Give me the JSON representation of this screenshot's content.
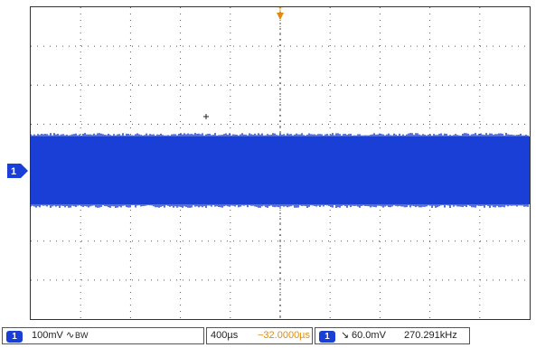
{
  "channel": {
    "number": "1",
    "color": "#1a3fd6"
  },
  "trigger_marker_label": "T",
  "status": {
    "ch1_badge": "1",
    "ch1_scale": "100mV",
    "ch1_coupling": "∿",
    "ch1_bw": "BW",
    "timebase": "400µs",
    "trigger_offset": "−32.0000µs",
    "trig_badge": "1",
    "trigger_edge": "↘",
    "trigger_level": "60.0mV",
    "frequency": "270.291kHz"
  },
  "colors": {
    "waveform": "#1a3fd6",
    "grid": "#555555",
    "trigger": "#e08b10"
  }
}
